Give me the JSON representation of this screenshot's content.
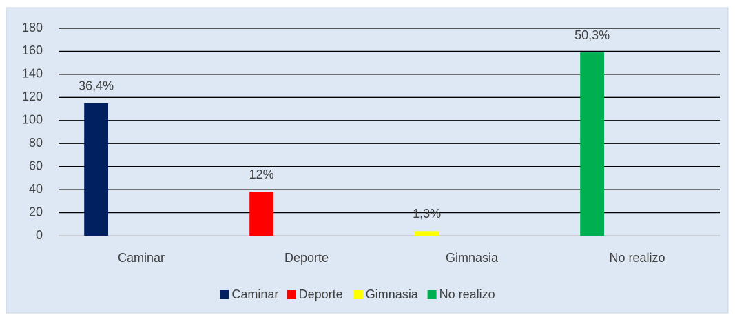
{
  "chart_data": {
    "type": "bar",
    "categories": [
      "Caminar",
      "Deporte",
      "Gimnasia",
      "No realizo"
    ],
    "values": [
      115,
      38,
      4,
      159
    ],
    "value_labels": [
      "36,4%",
      "12%",
      "1,3%",
      "50,3%"
    ],
    "colors": [
      "#002060",
      "#ff0000",
      "#ffff00",
      "#00b050"
    ],
    "ylim": [
      0,
      180
    ],
    "yticks": [
      0,
      20,
      40,
      60,
      80,
      100,
      120,
      140,
      160,
      180
    ],
    "grid": true,
    "legend": "bottom"
  }
}
